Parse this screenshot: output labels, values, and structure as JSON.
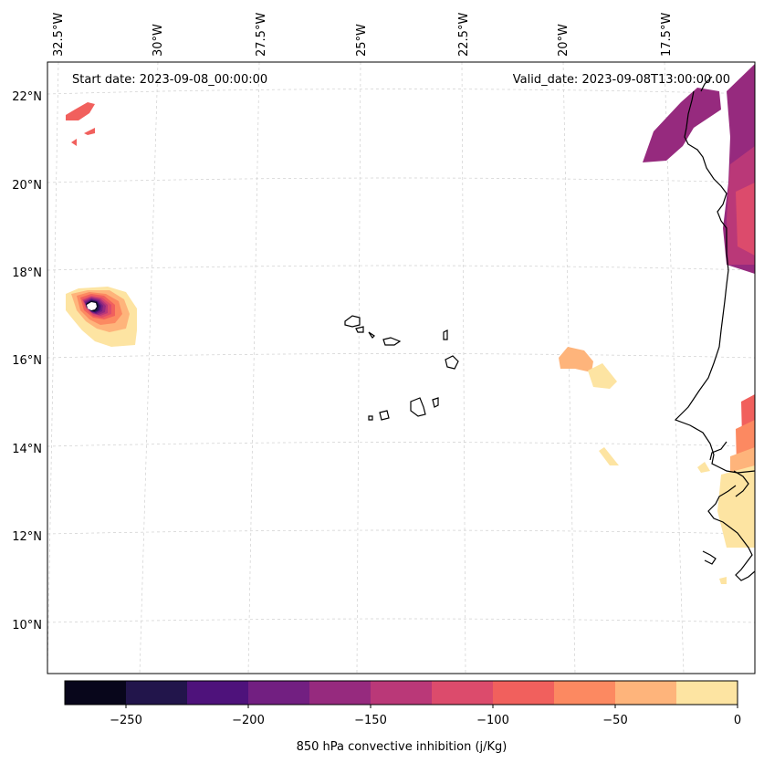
{
  "annotations": {
    "start_date": "Start date: 2023-09-08_00:00:00",
    "valid_date": "Valid_date: 2023-09-08T13:00:00.00"
  },
  "axes": {
    "lon_ticks": [
      "32.5°W",
      "30°W",
      "27.5°W",
      "25°W",
      "22.5°W",
      "20°W",
      "17.5°W"
    ],
    "lat_ticks": [
      "22°N",
      "20°N",
      "18°N",
      "16°N",
      "14°N",
      "12°N",
      "10°N"
    ]
  },
  "colorbar": {
    "label": "850 hPa convective inhibition (j/Kg)",
    "tick_labels": [
      "−250",
      "−200",
      "−150",
      "−100",
      "−50",
      "0"
    ],
    "levels": [
      -275,
      -250,
      -225,
      -200,
      -175,
      -150,
      -125,
      -100,
      -75,
      -50,
      -25,
      0
    ],
    "colors": [
      "#08061b",
      "#22154b",
      "#4e127b",
      "#721f81",
      "#962a7e",
      "#ba3878",
      "#dc4b6c",
      "#f1605d",
      "#fc8961",
      "#feb47b",
      "#fde4a2"
    ]
  },
  "chart_data": {
    "type": "heatmap",
    "variable": "850 hPa convective inhibition",
    "units": "j/Kg",
    "lon_range": [
      -33,
      -16.2
    ],
    "lat_range": [
      9,
      22.6
    ],
    "colorbar_range": [
      -275,
      0
    ],
    "features": [
      {
        "type": "cyclone-core",
        "lon": -31.5,
        "lat": 17.2,
        "min_value": -275
      },
      {
        "type": "patch",
        "lon": -21.0,
        "lat": 16.0,
        "value": -40
      },
      {
        "type": "coastal-band",
        "lon": -16.5,
        "lat": 20.5,
        "value": -140
      }
    ]
  }
}
